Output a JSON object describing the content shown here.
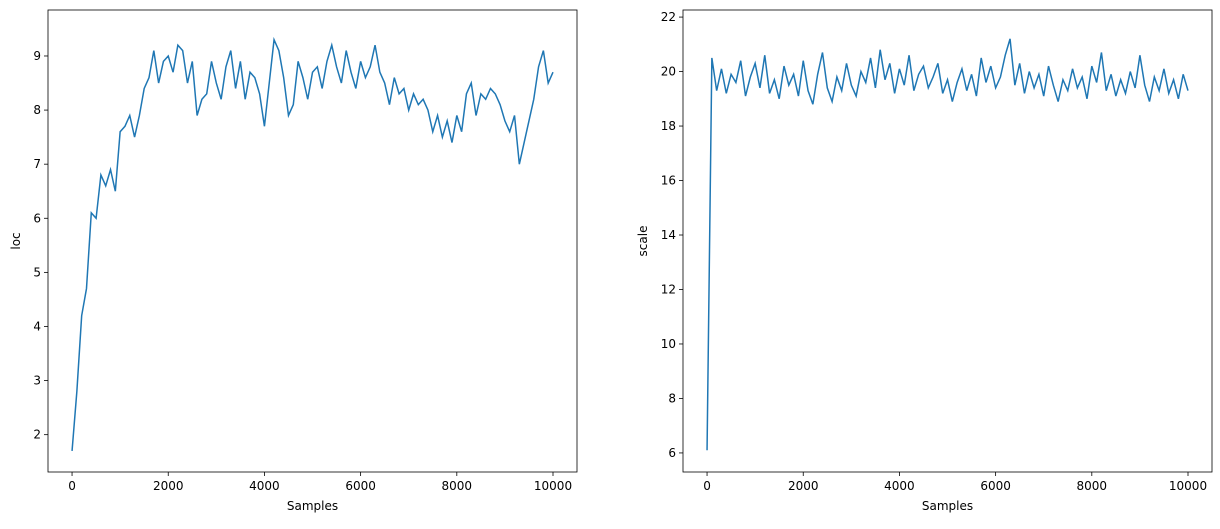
{
  "chart_data": [
    {
      "type": "line",
      "xlabel": "Samples",
      "ylabel": "loc",
      "xlim": [
        -500,
        10499
      ],
      "ylim": [
        1.31,
        9.85
      ],
      "xticks": [
        0,
        2000,
        4000,
        6000,
        8000,
        10000
      ],
      "yticks": [
        2,
        3,
        4,
        5,
        6,
        7,
        8,
        9
      ],
      "x": [
        0,
        100,
        200,
        300,
        400,
        500,
        600,
        700,
        800,
        900,
        1000,
        1100,
        1200,
        1300,
        1400,
        1500,
        1600,
        1700,
        1800,
        1900,
        2000,
        2100,
        2200,
        2300,
        2400,
        2500,
        2600,
        2700,
        2800,
        2900,
        3000,
        3100,
        3200,
        3300,
        3400,
        3500,
        3600,
        3700,
        3800,
        3900,
        4000,
        4100,
        4200,
        4300,
        4400,
        4500,
        4600,
        4700,
        4800,
        4900,
        5000,
        5100,
        5200,
        5300,
        5400,
        5500,
        5600,
        5700,
        5800,
        5900,
        6000,
        6100,
        6200,
        6300,
        6400,
        6500,
        6600,
        6700,
        6800,
        6900,
        7000,
        7100,
        7200,
        7300,
        7400,
        7500,
        7600,
        7700,
        7800,
        7900,
        8000,
        8100,
        8200,
        8300,
        8400,
        8500,
        8600,
        8700,
        8800,
        8900,
        9000,
        9100,
        9200,
        9300,
        9400,
        9500,
        9600,
        9700,
        9800,
        9900,
        10000
      ],
      "series": [
        {
          "color": "#1f77b4",
          "values": [
            1.7,
            2.8,
            4.2,
            4.7,
            6.1,
            6.0,
            6.8,
            6.6,
            6.9,
            6.5,
            7.6,
            7.7,
            7.9,
            7.5,
            7.9,
            8.4,
            8.6,
            9.1,
            8.5,
            8.9,
            9.0,
            8.7,
            9.2,
            9.1,
            8.5,
            8.9,
            7.9,
            8.2,
            8.3,
            8.9,
            8.5,
            8.2,
            8.8,
            9.1,
            8.4,
            8.9,
            8.2,
            8.7,
            8.6,
            8.3,
            7.7,
            8.5,
            9.3,
            9.1,
            8.6,
            7.9,
            8.1,
            8.9,
            8.6,
            8.2,
            8.7,
            8.8,
            8.4,
            8.9,
            9.2,
            8.8,
            8.5,
            9.1,
            8.7,
            8.4,
            8.9,
            8.6,
            8.8,
            9.2,
            8.7,
            8.5,
            8.1,
            8.6,
            8.3,
            8.4,
            8.0,
            8.3,
            8.1,
            8.2,
            8.0,
            7.6,
            7.9,
            7.5,
            7.8,
            7.4,
            7.9,
            7.6,
            8.3,
            8.5,
            7.9,
            8.3,
            8.2,
            8.4,
            8.3,
            8.1,
            7.8,
            7.6,
            7.9,
            7.0,
            7.4,
            7.8,
            8.2,
            8.8,
            9.1,
            8.5,
            8.7
          ]
        }
      ]
    },
    {
      "type": "line",
      "xlabel": "Samples",
      "ylabel": "scale",
      "xlim": [
        -500,
        10499
      ],
      "ylim": [
        5.3,
        22.26
      ],
      "xticks": [
        0,
        2000,
        4000,
        6000,
        8000,
        10000
      ],
      "yticks": [
        6,
        8,
        10,
        12,
        14,
        16,
        18,
        20,
        22
      ],
      "x": [
        0,
        100,
        200,
        300,
        400,
        500,
        600,
        700,
        800,
        900,
        1000,
        1100,
        1200,
        1300,
        1400,
        1500,
        1600,
        1700,
        1800,
        1900,
        2000,
        2100,
        2200,
        2300,
        2400,
        2500,
        2600,
        2700,
        2800,
        2900,
        3000,
        3100,
        3200,
        3300,
        3400,
        3500,
        3600,
        3700,
        3800,
        3900,
        4000,
        4100,
        4200,
        4300,
        4400,
        4500,
        4600,
        4700,
        4800,
        4900,
        5000,
        5100,
        5200,
        5300,
        5400,
        5500,
        5600,
        5700,
        5800,
        5900,
        6000,
        6100,
        6200,
        6300,
        6400,
        6500,
        6600,
        6700,
        6800,
        6900,
        7000,
        7100,
        7200,
        7300,
        7400,
        7500,
        7600,
        7700,
        7800,
        7900,
        8000,
        8100,
        8200,
        8300,
        8400,
        8500,
        8600,
        8700,
        8800,
        8900,
        9000,
        9100,
        9200,
        9300,
        9400,
        9500,
        9600,
        9700,
        9800,
        9900,
        10000
      ],
      "series": [
        {
          "color": "#1f77b4",
          "values": [
            6.1,
            20.5,
            19.3,
            20.1,
            19.2,
            19.9,
            19.6,
            20.4,
            19.1,
            19.8,
            20.3,
            19.4,
            20.6,
            19.2,
            19.7,
            19.0,
            20.2,
            19.5,
            19.9,
            19.1,
            20.4,
            19.3,
            18.8,
            19.9,
            20.7,
            19.4,
            18.9,
            19.8,
            19.3,
            20.3,
            19.5,
            19.1,
            20.0,
            19.6,
            20.5,
            19.4,
            20.8,
            19.7,
            20.3,
            19.2,
            20.1,
            19.5,
            20.6,
            19.3,
            19.9,
            20.2,
            19.4,
            19.8,
            20.3,
            19.2,
            19.7,
            18.9,
            19.6,
            20.1,
            19.3,
            19.9,
            19.1,
            20.5,
            19.6,
            20.2,
            19.4,
            19.8,
            20.6,
            21.2,
            19.5,
            20.3,
            19.2,
            20.0,
            19.4,
            19.9,
            19.1,
            20.2,
            19.5,
            18.9,
            19.7,
            19.3,
            20.1,
            19.4,
            19.8,
            19.0,
            20.2,
            19.6,
            20.7,
            19.3,
            19.9,
            19.1,
            19.7,
            19.2,
            20.0,
            19.4,
            20.6,
            19.5,
            18.9,
            19.8,
            19.3,
            20.1,
            19.2,
            19.7,
            19.0,
            19.9,
            19.3
          ]
        }
      ]
    }
  ]
}
